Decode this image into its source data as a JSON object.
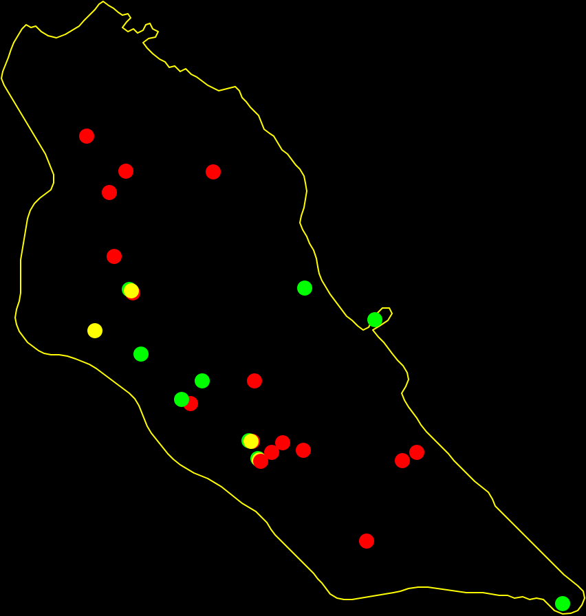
{
  "map": {
    "background_color": "#000000",
    "boundary_color": "#FFFF00",
    "marker_colors": {
      "red": "#FF0000",
      "green": "#00FF00",
      "yellow": "#FFFF00"
    },
    "markers": [
      {
        "id": "m1",
        "color": "red"
      },
      {
        "id": "m2",
        "color": "red"
      },
      {
        "id": "m3",
        "color": "red"
      },
      {
        "id": "m4",
        "color": "red"
      },
      {
        "id": "m5",
        "color": "red"
      },
      {
        "id": "m6",
        "color": "red"
      },
      {
        "id": "m7",
        "color": "green"
      },
      {
        "id": "m8",
        "color": "yellow"
      },
      {
        "id": "m9",
        "color": "green"
      },
      {
        "id": "m10",
        "color": "green"
      },
      {
        "id": "m11",
        "color": "yellow"
      },
      {
        "id": "m12",
        "color": "green"
      },
      {
        "id": "m13",
        "color": "green"
      },
      {
        "id": "m14",
        "color": "red"
      },
      {
        "id": "m15",
        "color": "red"
      },
      {
        "id": "m16",
        "color": "green"
      },
      {
        "id": "m17",
        "color": "red"
      },
      {
        "id": "m18",
        "color": "green"
      },
      {
        "id": "m19",
        "color": "yellow"
      },
      {
        "id": "m20",
        "color": "red"
      },
      {
        "id": "m21",
        "color": "green"
      },
      {
        "id": "m22",
        "color": "yellow"
      },
      {
        "id": "m23",
        "color": "red"
      },
      {
        "id": "m24",
        "color": "red"
      },
      {
        "id": "m25",
        "color": "red"
      },
      {
        "id": "m26",
        "color": "red"
      },
      {
        "id": "m27",
        "color": "red"
      },
      {
        "id": "m28",
        "color": "red"
      },
      {
        "id": "m29",
        "color": "green"
      }
    ]
  }
}
